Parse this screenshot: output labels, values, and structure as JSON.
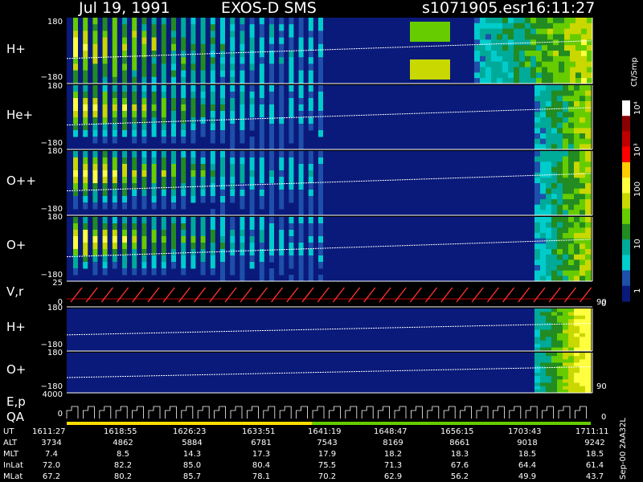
{
  "header": {
    "date": "Jul 19, 1991",
    "instrument": "EXOS-D SMS",
    "file": "s1071905.esr",
    "time": "16:11:27"
  },
  "colorbar": {
    "unit": "Ct/Smp",
    "ticks": [
      "10⁴",
      "10³",
      "100",
      "10",
      "1"
    ],
    "colors": [
      "#ffffff",
      "#8b0000",
      "#c00000",
      "#ff0000",
      "#ffcc00",
      "#ffff40",
      "#c8d800",
      "#66cc00",
      "#228b22",
      "#00aa99",
      "#00cccc",
      "#1e4faa",
      "#0a1a7a"
    ]
  },
  "panels": [
    {
      "id": "h-plus",
      "label": "H+",
      "ymax": "180",
      "ymin": "−180"
    },
    {
      "id": "he-plus",
      "label": "He+",
      "ymax": "180",
      "ymin": "−180"
    },
    {
      "id": "o-plus-plus",
      "label": "O++",
      "ymax": "180",
      "ymin": "−180"
    },
    {
      "id": "o-plus",
      "label": "O+",
      "ymax": "180",
      "ymin": "−180"
    },
    {
      "id": "v-r",
      "label": "V,r",
      "ymax": "25",
      "ymin": "0",
      "right": "90",
      "right_low": "0"
    },
    {
      "id": "h-plus-2",
      "label": "H+",
      "ymax": "180",
      "ymin": "−180"
    },
    {
      "id": "o-plus-2",
      "label": "O+",
      "ymax": "180",
      "ymin": "−180",
      "right": "90"
    },
    {
      "id": "ep-qa",
      "label1": "E,p",
      "label2": "QA",
      "ymax": "4000",
      "ymin": "0",
      "right_low": "0"
    }
  ],
  "chart_data": {
    "type": "heatmap",
    "title": "Jul 19, 1991   EXOS-D SMS",
    "x_label": "UT",
    "x": [
      "1611:27",
      "1618:55",
      "1626:23",
      "1633:51",
      "1641:19",
      "1648:47",
      "1656:15",
      "1703:43",
      "1711:11"
    ],
    "rows": [
      {
        "name": "ALT",
        "values": [
          "3734",
          "4862",
          "5884",
          "6781",
          "7543",
          "8169",
          "8661",
          "9018",
          "9242"
        ]
      },
      {
        "name": "MLT",
        "values": [
          "7.4",
          "8.5",
          "14.3",
          "17.3",
          "17.9",
          "18.2",
          "18.3",
          "18.5",
          "18.5"
        ]
      },
      {
        "name": "InLat",
        "values": [
          "72.0",
          "82.2",
          "85.0",
          "80.4",
          "75.5",
          "71.3",
          "67.6",
          "64.4",
          "61.4"
        ]
      },
      {
        "name": "MLat",
        "values": [
          "67.2",
          "80.2",
          "85.7",
          "78.1",
          "70.2",
          "62.9",
          "56.2",
          "49.9",
          "43.7"
        ]
      }
    ],
    "colorbar_unit": "Ct/Smp",
    "colorbar_ticks": [
      "1",
      "10",
      "100",
      "10³",
      "10⁴"
    ],
    "panels_y_range": [
      "−180",
      "180"
    ]
  },
  "footer_code": "Sep-00 2AA32L"
}
